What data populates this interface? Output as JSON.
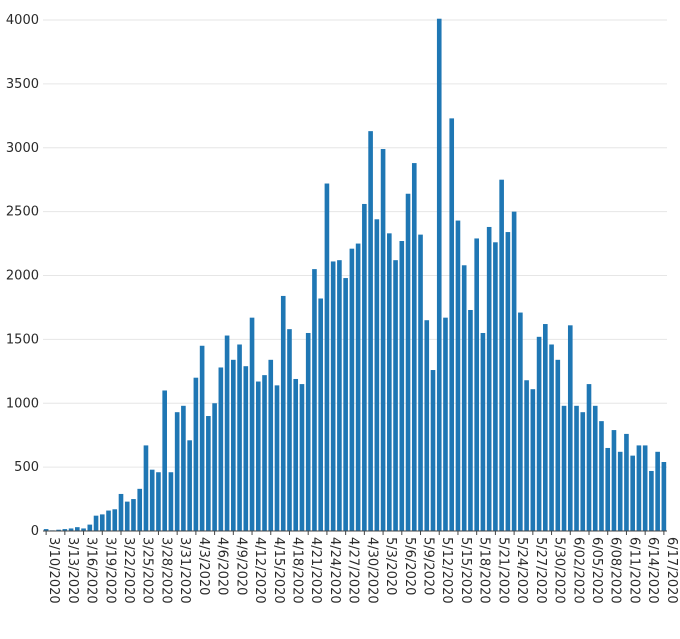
{
  "chart_data": {
    "type": "bar",
    "title": "",
    "xlabel": "",
    "ylabel": "",
    "ylim": [
      0,
      4000
    ],
    "yticks": [
      0,
      500,
      1000,
      1500,
      2000,
      2500,
      3000,
      3500,
      4000
    ],
    "bar_color": "#1f77b4",
    "grid": true,
    "start_date": "3/10/2020",
    "xtick_labels": [
      "3/10/2020",
      "3/13/2020",
      "3/16/2020",
      "3/19/2020",
      "3/22/2020",
      "3/25/2020",
      "3/28/2020",
      "3/31/2020",
      "4/3/2020",
      "4/6/2020",
      "4/9/2020",
      "4/12/2020",
      "4/15/2020",
      "4/18/2020",
      "4/21/2020",
      "4/24/2020",
      "4/27/2020",
      "4/30/2020",
      "5/3/2020",
      "5/6/2020",
      "5/9/2020",
      "5/12/2020",
      "5/15/2020",
      "5/18/2020",
      "5/21/2020",
      "5/24/2020",
      "5/27/2020",
      "5/30/2020",
      "6/02/2020",
      "6/05/2020",
      "6/08/2020",
      "6/11/2020",
      "6/14/2020",
      "6/17/2020"
    ],
    "values": [
      15,
      5,
      10,
      15,
      20,
      30,
      20,
      50,
      120,
      130,
      160,
      170,
      290,
      230,
      250,
      330,
      670,
      480,
      460,
      1100,
      460,
      930,
      980,
      710,
      1200,
      1450,
      900,
      1000,
      1280,
      1530,
      1340,
      1460,
      1290,
      1670,
      1170,
      1220,
      1340,
      1140,
      1840,
      1580,
      1190,
      1150,
      1550,
      2050,
      1820,
      2720,
      2110,
      2120,
      1980,
      2210,
      2250,
      2560,
      3130,
      2440,
      2990,
      2330,
      2120,
      2270,
      2640,
      2880,
      2320,
      1650,
      1260,
      4010,
      1670,
      3230,
      2430,
      2080,
      1730,
      2290,
      1550,
      2380,
      2260,
      2750,
      2340,
      2500,
      1710,
      1180,
      1110,
      1520,
      1620,
      1460,
      1340,
      980,
      1610,
      980,
      930,
      1150,
      980,
      860,
      650,
      790,
      620,
      760,
      590,
      670,
      670,
      470,
      620,
      540
    ]
  }
}
